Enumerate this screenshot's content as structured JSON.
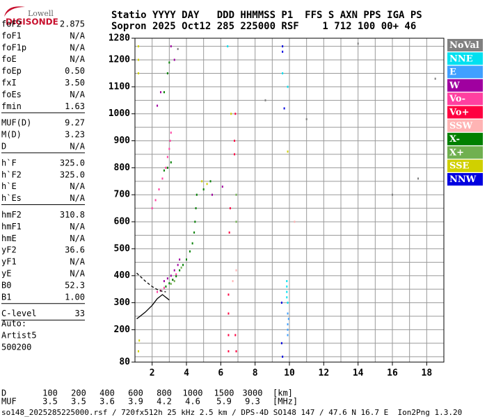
{
  "logo": {
    "line1": "Lowell",
    "line2": "DIGISONDE"
  },
  "header": [
    "Statio YYYY DAY   DDD HHMMSS P1  FFS S AXN PPS IGA PS",
    "Sopron 2025 Oct12 285 225000 RSF    1 712 100 00+ 46"
  ],
  "parameters": [
    [
      {
        "name": "foF2",
        "value": "2.875"
      },
      {
        "name": "foF1",
        "value": "N/A"
      },
      {
        "name": "foF1p",
        "value": "N/A"
      },
      {
        "name": "foE",
        "value": "N/A"
      },
      {
        "name": "foEp",
        "value": "0.50"
      },
      {
        "name": "fxI",
        "value": "3.50"
      },
      {
        "name": "foEs",
        "value": "N/A"
      },
      {
        "name": "fmin",
        "value": "1.63"
      }
    ],
    [
      {
        "name": "MUF(D)",
        "value": "9.27"
      },
      {
        "name": "M(D)",
        "value": "3.23"
      },
      {
        "name": "D",
        "value": "N/A"
      }
    ],
    [
      {
        "name": "h`F",
        "value": "325.0"
      },
      {
        "name": "h`F2",
        "value": "325.0"
      },
      {
        "name": "h`E",
        "value": "N/A"
      },
      {
        "name": "h`Es",
        "value": "N/A"
      }
    ],
    [
      {
        "name": "hmF2",
        "value": "310.8"
      },
      {
        "name": "hmF1",
        "value": "N/A"
      },
      {
        "name": "hmE",
        "value": "N/A"
      },
      {
        "name": "yF2",
        "value": "36.6"
      },
      {
        "name": "yF1",
        "value": "N/A"
      },
      {
        "name": "yE",
        "value": "N/A"
      },
      {
        "name": "B0",
        "value": "52.3"
      },
      {
        "name": "B1",
        "value": "1.00"
      }
    ],
    [
      {
        "name": "C-level",
        "value": "33"
      }
    ]
  ],
  "auto": [
    "Auto:",
    "Artist5",
    "500200"
  ],
  "muf_table": {
    "d_label": "D",
    "d_values": [
      100,
      200,
      400,
      600,
      800,
      1000,
      1500,
      3000
    ],
    "d_unit": "[km]",
    "muf_label": "MUF",
    "muf_values": [
      3.5,
      3.5,
      3.6,
      3.9,
      4.2,
      4.6,
      5.9,
      9.3
    ],
    "muf_unit": "[MHz]"
  },
  "footer": "so148_2025285225000.rsf / 720fx512h 25 kHz 2.5 km / DPS-4D SO148 147 / 47.6 N 16.7 E  Ion2Png 1.3.20",
  "chart_data": {
    "type": "scatter",
    "xlim": [
      1,
      19
    ],
    "ylim": [
      80,
      1280
    ],
    "xticks": [
      2,
      4,
      6,
      8,
      10,
      12,
      14,
      16,
      18
    ],
    "yticks": [
      80,
      200,
      300,
      400,
      500,
      600,
      700,
      800,
      900,
      1000,
      1100,
      1200,
      1280
    ],
    "xgrid": [
      2,
      3,
      4,
      5,
      6,
      7,
      8,
      9,
      10,
      11,
      12,
      13,
      14,
      15,
      16,
      17,
      18
    ],
    "ygrid": [
      100,
      150,
      200,
      250,
      300,
      350,
      400,
      450,
      500,
      550,
      600,
      650,
      700,
      750,
      800,
      850,
      900,
      950,
      1000,
      1050,
      1100,
      1150,
      1200,
      1250
    ],
    "grid": true,
    "legend": "right",
    "series": [
      {
        "name": "NoVal",
        "color": "#808080",
        "x": [
          3.5,
          8.6,
          11,
          14,
          17.5,
          16,
          18.5
        ],
        "values": [
          1240,
          1050,
          980,
          1260,
          760,
          700,
          1130
        ]
      },
      {
        "name": "NNE",
        "color": "#00e0f0",
        "x": [
          9.85,
          9.85,
          9.9,
          9.85,
          9.85,
          9.6,
          9.9,
          6.4
        ],
        "values": [
          320,
          340,
          300,
          360,
          380,
          1150,
          1100,
          1250
        ]
      },
      {
        "name": "E",
        "color": "#40a0ff",
        "x": [
          9.9,
          9.95,
          9.9,
          9.9,
          9.9
        ],
        "values": [
          260,
          240,
          220,
          200,
          180
        ]
      },
      {
        "name": "W",
        "color": "#a000a0",
        "x": [
          2.7,
          2.9,
          3.1,
          3.3,
          3.5,
          3.6,
          2.3,
          2.5,
          3.1,
          3.3,
          5.5,
          6.1
        ],
        "values": [
          380,
          390,
          400,
          420,
          440,
          460,
          1030,
          1080,
          1250,
          1200,
          700,
          730
        ]
      },
      {
        "name": "Vo-",
        "color": "#ff40a0",
        "x": [
          2.3,
          2.5,
          2.7,
          3.2,
          3.4,
          2.0,
          2.2,
          2.4,
          2.6,
          2.8,
          2.9,
          3.0,
          3.05,
          3.1
        ],
        "values": [
          340,
          345,
          355,
          385,
          405,
          650,
          680,
          720,
          760,
          800,
          840,
          870,
          900,
          930
        ]
      },
      {
        "name": "Vo+",
        "color": "#ff0040",
        "x": [
          6.45,
          6.45,
          6.45,
          6.45,
          6.5,
          6.55,
          6.8,
          6.8,
          6.85,
          6.9,
          6.85
        ],
        "values": [
          120,
          180,
          260,
          330,
          560,
          650,
          850,
          900,
          1000,
          120,
          180
        ]
      },
      {
        "name": "SSW",
        "color": "#ffb4b4",
        "x": [
          6.7,
          6.9,
          10.3
        ],
        "values": [
          380,
          420,
          600
        ]
      },
      {
        "name": "X-",
        "color": "#008000",
        "x": [
          2.8,
          3.0,
          3.2,
          3.4,
          3.6,
          3.8,
          4.0,
          4.2,
          4.35,
          4.45,
          4.5,
          4.55,
          4.6,
          5.0,
          5.4,
          2.7,
          2.9,
          3.1,
          2.7,
          2.9,
          3.0
        ],
        "values": [
          360,
          372,
          385,
          398,
          420,
          440,
          460,
          490,
          520,
          560,
          600,
          650,
          700,
          720,
          750,
          790,
          800,
          820,
          1080,
          1150,
          1190
        ]
      },
      {
        "name": "X+",
        "color": "#70b050",
        "x": [
          3.1,
          3.3,
          3.7,
          6.9,
          6.9
        ],
        "values": [
          370,
          380,
          430,
          700,
          600
        ]
      },
      {
        "name": "SSE",
        "color": "#d0d000",
        "x": [
          1.2,
          1.2,
          1.2,
          1.2,
          1.25,
          4.9,
          5.2,
          9.9,
          6.6
        ],
        "values": [
          1250,
          1200,
          1150,
          120,
          160,
          750,
          740,
          860,
          1000
        ]
      },
      {
        "name": "NNW",
        "color": "#0000e0",
        "x": [
          9.55,
          9.6,
          9.6,
          9.6,
          9.7,
          9.55
        ],
        "values": [
          150,
          100,
          1250,
          1230,
          1020,
          300
        ]
      },
      {
        "type": "line",
        "color": "#000000",
        "dashed": false,
        "x": [
          1.1,
          1.6,
          2.0,
          2.3,
          2.6,
          3.0
        ],
        "values": [
          240,
          265,
          290,
          315,
          330,
          310
        ]
      },
      {
        "type": "line",
        "color": "#000000",
        "dashed": true,
        "x": [
          1.1,
          1.6,
          2.0,
          2.4,
          2.8
        ],
        "values": [
          410,
          380,
          360,
          345,
          340
        ]
      }
    ]
  }
}
